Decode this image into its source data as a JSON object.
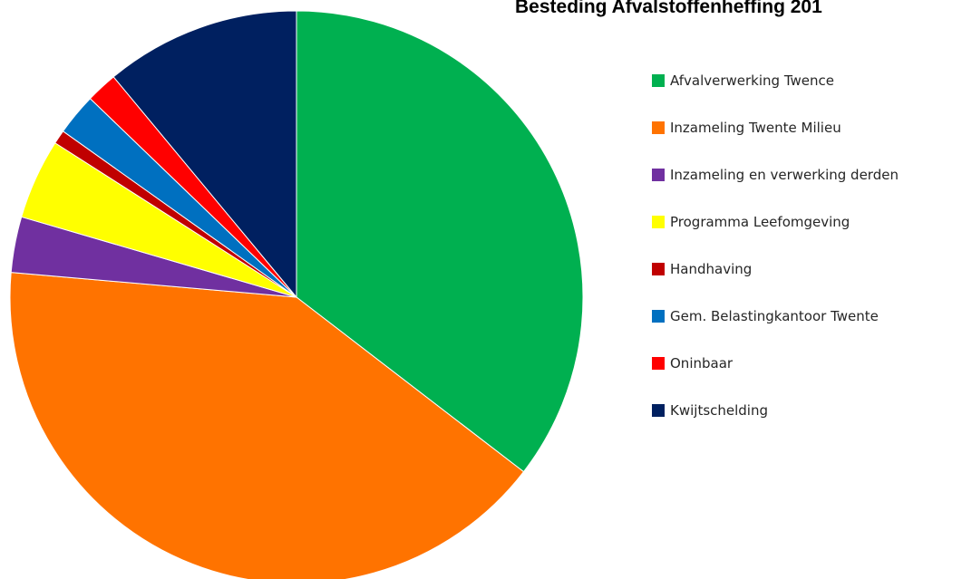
{
  "chart_data": {
    "type": "pie",
    "title": "Besteding Afvalstoffenheffing 201",
    "start_angle_deg": 0,
    "direction": "clockwise",
    "legend_position": "right",
    "slices": [
      {
        "label": "Afvalverwerking Twence",
        "value": 36.0,
        "color": "#00b050"
      },
      {
        "label": "Inzameling Twente Milieu",
        "value": 41.6,
        "color": "#ff7300"
      },
      {
        "label": "Inzameling en verwerking derden",
        "value": 3.2,
        "color": "#7030a0"
      },
      {
        "label": "Programma Leefomgeving",
        "value": 4.6,
        "color": "#ffff00"
      },
      {
        "label": "Handhaving",
        "value": 0.8,
        "color": "#c00000"
      },
      {
        "label": "Gem. Belastingkantoor Twente",
        "value": 2.4,
        "color": "#0070c0"
      },
      {
        "label": "Oninbaar",
        "value": 1.8,
        "color": "#ff0000"
      },
      {
        "label": "Kwijtschelding",
        "value": 11.2,
        "color": "#002060"
      }
    ]
  }
}
